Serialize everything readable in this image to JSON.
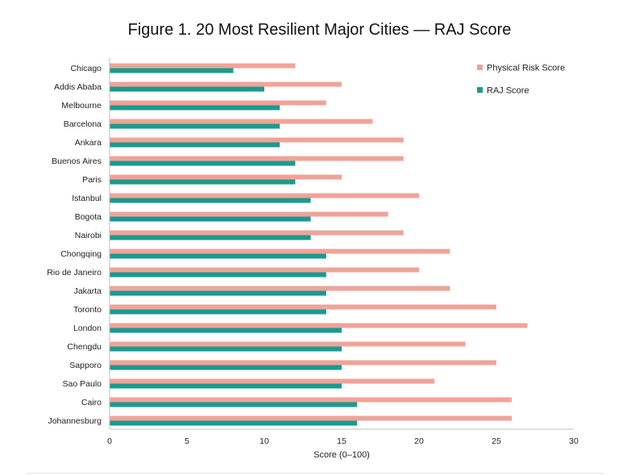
{
  "chart_data": {
    "type": "bar",
    "orientation": "horizontal",
    "title": "Figure 1. 20 Most Resilient Major Cities — RAJ Score",
    "xlabel": "Score (0–100)",
    "ylabel": "",
    "xlim": [
      0,
      30
    ],
    "xticks": [
      0,
      5,
      10,
      15,
      20,
      25,
      30
    ],
    "grid": false,
    "legend": "top-right",
    "categories": [
      "Chicago",
      "Addis Ababa",
      "Melbourne",
      "Barcelona",
      "Ankara",
      "Buenos Aires",
      "Paris",
      "Istanbul",
      "Bogota",
      "Nairobi",
      "Chongqing",
      "Rio de Janeiro",
      "Jakarta",
      "Toronto",
      "London",
      "Chengdu",
      "Sapporo",
      "Sao Paulo",
      "Cairo",
      "Johannesburg"
    ],
    "series": [
      {
        "name": "Physical Risk Score",
        "color": "#f0a398",
        "values": [
          12,
          15,
          14,
          17,
          19,
          19,
          15,
          20,
          18,
          19,
          22,
          20,
          22,
          25,
          27,
          23,
          25,
          21,
          26,
          26
        ]
      },
      {
        "name": "RAJ Score",
        "color": "#1a9a8f",
        "values": [
          8,
          10,
          11,
          11,
          11,
          12,
          12,
          13,
          13,
          13,
          14,
          14,
          14,
          14,
          15,
          15,
          15,
          15,
          16,
          16
        ]
      }
    ]
  }
}
